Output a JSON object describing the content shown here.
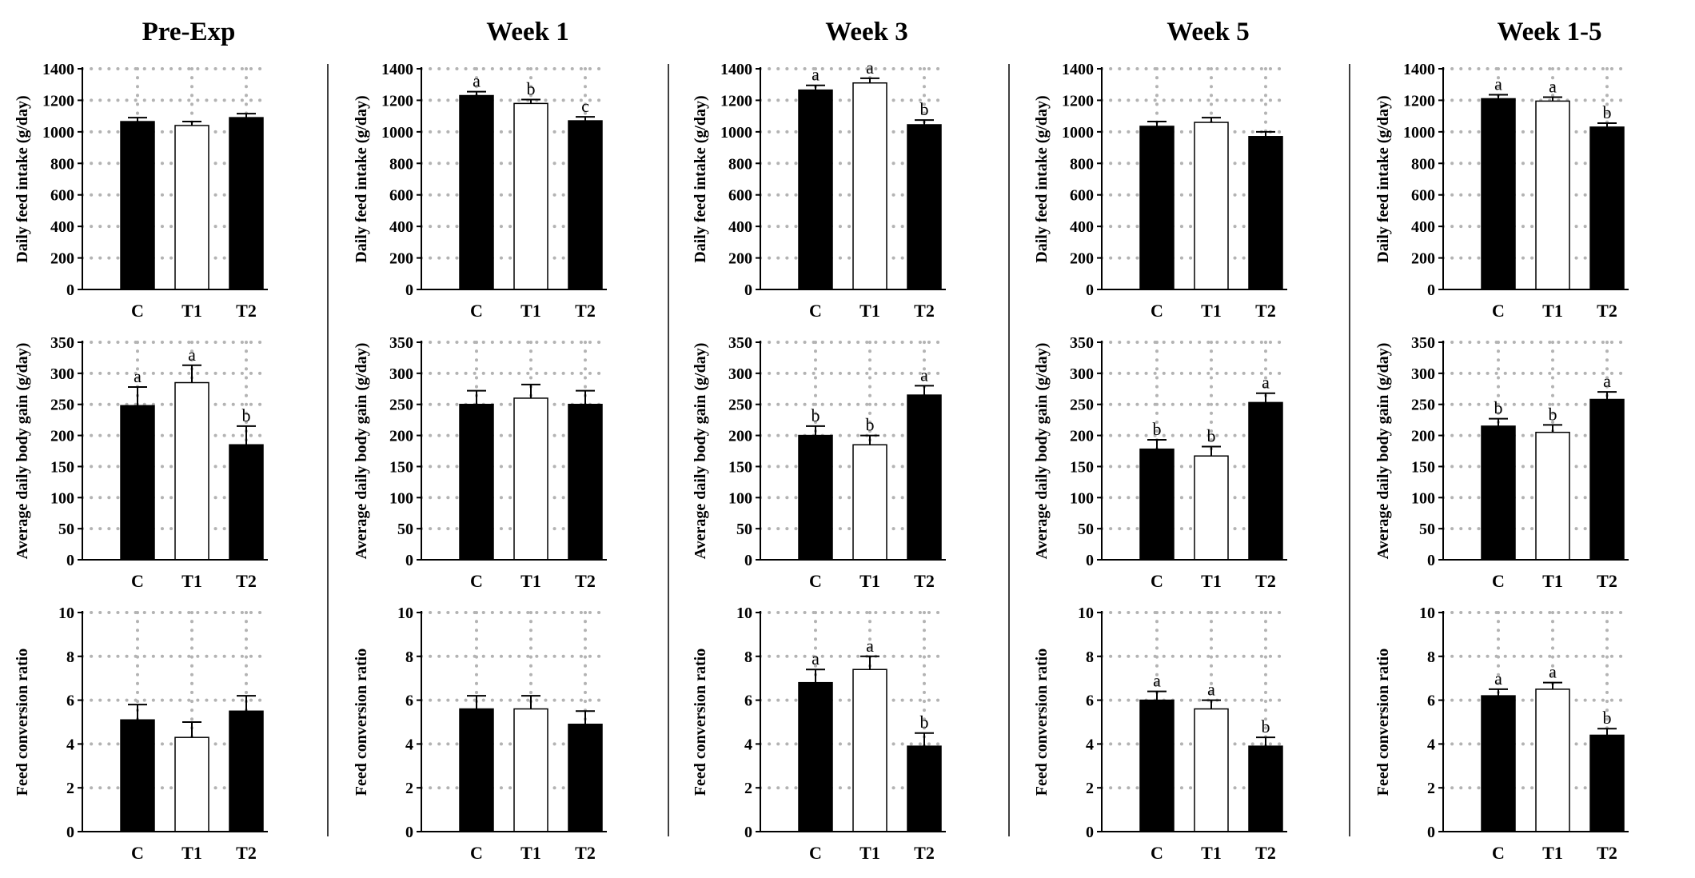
{
  "figure": {
    "columns": [
      "Pre-Exp",
      "Week 1",
      "Week 3",
      "Week 5",
      "Week 1-5"
    ],
    "colors": {
      "filled": "#000000",
      "open": "#ffffff",
      "grid": "#b3b3b3"
    }
  },
  "chart_data": [
    {
      "type": "bar",
      "column": "Pre-Exp",
      "ylabel": "Daily feed intake (g/day)",
      "categories": [
        "C",
        "T1",
        "T2"
      ],
      "values": [
        1065,
        1040,
        1090
      ],
      "errors": [
        25,
        25,
        25
      ],
      "letters": [
        "",
        "",
        ""
      ],
      "ylim": [
        0,
        1400
      ],
      "yticks": [
        0,
        200,
        400,
        600,
        800,
        1000,
        1200,
        1400
      ],
      "bar_fill": [
        "filled",
        "open",
        "filled"
      ],
      "grid": true
    },
    {
      "type": "bar",
      "column": "Week 1",
      "ylabel": "Daily feed intake (g/day)",
      "categories": [
        "C",
        "T1",
        "T2"
      ],
      "values": [
        1230,
        1180,
        1070
      ],
      "errors": [
        25,
        25,
        25
      ],
      "letters": [
        "a",
        "b",
        "c"
      ],
      "ylim": [
        0,
        1400
      ],
      "yticks": [
        0,
        200,
        400,
        600,
        800,
        1000,
        1200,
        1400
      ],
      "bar_fill": [
        "filled",
        "open",
        "filled"
      ],
      "grid": true
    },
    {
      "type": "bar",
      "column": "Week 3",
      "ylabel": "Daily feed intake (g/day)",
      "categories": [
        "C",
        "T1",
        "T2"
      ],
      "values": [
        1265,
        1310,
        1045
      ],
      "errors": [
        30,
        30,
        30
      ],
      "letters": [
        "a",
        "a",
        "b"
      ],
      "ylim": [
        0,
        1400
      ],
      "yticks": [
        0,
        200,
        400,
        600,
        800,
        1000,
        1200,
        1400
      ],
      "bar_fill": [
        "filled",
        "open",
        "filled"
      ],
      "grid": true
    },
    {
      "type": "bar",
      "column": "Week 5",
      "ylabel": "Daily feed intake (g/day)",
      "categories": [
        "C",
        "T1",
        "T2"
      ],
      "values": [
        1035,
        1060,
        970
      ],
      "errors": [
        30,
        30,
        30
      ],
      "letters": [
        "",
        "",
        ""
      ],
      "ylim": [
        0,
        1400
      ],
      "yticks": [
        0,
        200,
        400,
        600,
        800,
        1000,
        1200,
        1400
      ],
      "bar_fill": [
        "filled",
        "open",
        "filled"
      ],
      "grid": true
    },
    {
      "type": "bar",
      "column": "Week 1-5",
      "ylabel": "Daily feed intake (g/day)",
      "categories": [
        "C",
        "T1",
        "T2"
      ],
      "values": [
        1210,
        1195,
        1030
      ],
      "errors": [
        25,
        25,
        25
      ],
      "letters": [
        "a",
        "a",
        "b"
      ],
      "ylim": [
        0,
        1400
      ],
      "yticks": [
        0,
        200,
        400,
        600,
        800,
        1000,
        1200,
        1400
      ],
      "bar_fill": [
        "filled",
        "open",
        "filled"
      ],
      "grid": true
    },
    {
      "type": "bar",
      "column": "Pre-Exp",
      "ylabel": "Average daily body gain (g/day)",
      "categories": [
        "C",
        "T1",
        "T2"
      ],
      "values": [
        248,
        285,
        185
      ],
      "errors": [
        30,
        28,
        30
      ],
      "letters": [
        "a",
        "a",
        "b"
      ],
      "ylim": [
        0,
        350
      ],
      "yticks": [
        0,
        50,
        100,
        150,
        200,
        250,
        300,
        350
      ],
      "bar_fill": [
        "filled",
        "open",
        "filled"
      ],
      "grid": true
    },
    {
      "type": "bar",
      "column": "Week 1",
      "ylabel": "Average daily body gain (g/day)",
      "categories": [
        "C",
        "T1",
        "T2"
      ],
      "values": [
        250,
        260,
        250
      ],
      "errors": [
        22,
        22,
        22
      ],
      "letters": [
        "",
        "",
        ""
      ],
      "ylim": [
        0,
        350
      ],
      "yticks": [
        0,
        50,
        100,
        150,
        200,
        250,
        300,
        350
      ],
      "bar_fill": [
        "filled",
        "open",
        "filled"
      ],
      "grid": true
    },
    {
      "type": "bar",
      "column": "Week 3",
      "ylabel": "Average daily body gain (g/day)",
      "categories": [
        "C",
        "T1",
        "T2"
      ],
      "values": [
        200,
        185,
        265
      ],
      "errors": [
        15,
        15,
        15
      ],
      "letters": [
        "b",
        "b",
        "a"
      ],
      "ylim": [
        0,
        350
      ],
      "yticks": [
        0,
        50,
        100,
        150,
        200,
        250,
        300,
        350
      ],
      "bar_fill": [
        "filled",
        "open",
        "filled"
      ],
      "grid": true
    },
    {
      "type": "bar",
      "column": "Week 5",
      "ylabel": "Average daily body gain (g/day)",
      "categories": [
        "C",
        "T1",
        "T2"
      ],
      "values": [
        178,
        167,
        253
      ],
      "errors": [
        15,
        15,
        15
      ],
      "letters": [
        "b",
        "b",
        "a"
      ],
      "ylim": [
        0,
        350
      ],
      "yticks": [
        0,
        50,
        100,
        150,
        200,
        250,
        300,
        350
      ],
      "bar_fill": [
        "filled",
        "open",
        "filled"
      ],
      "grid": true
    },
    {
      "type": "bar",
      "column": "Week 1-5",
      "ylabel": "Average daily body gain (g/day)",
      "categories": [
        "C",
        "T1",
        "T2"
      ],
      "values": [
        215,
        205,
        258
      ],
      "errors": [
        12,
        12,
        12
      ],
      "letters": [
        "b",
        "b",
        "a"
      ],
      "ylim": [
        0,
        350
      ],
      "yticks": [
        0,
        50,
        100,
        150,
        200,
        250,
        300,
        350
      ],
      "bar_fill": [
        "filled",
        "open",
        "filled"
      ],
      "grid": true
    },
    {
      "type": "bar",
      "column": "Pre-Exp",
      "ylabel": "Feed conversion ratio",
      "categories": [
        "C",
        "T1",
        "T2"
      ],
      "values": [
        5.1,
        4.3,
        5.5
      ],
      "errors": [
        0.7,
        0.7,
        0.7
      ],
      "letters": [
        "",
        "",
        ""
      ],
      "ylim": [
        0,
        10
      ],
      "yticks": [
        0,
        2,
        4,
        6,
        8,
        10
      ],
      "bar_fill": [
        "filled",
        "open",
        "filled"
      ],
      "grid": true
    },
    {
      "type": "bar",
      "column": "Week 1",
      "ylabel": "Feed conversion ratio",
      "categories": [
        "C",
        "T1",
        "T2"
      ],
      "values": [
        5.6,
        5.6,
        4.9
      ],
      "errors": [
        0.6,
        0.6,
        0.6
      ],
      "letters": [
        "",
        "",
        ""
      ],
      "ylim": [
        0,
        10
      ],
      "yticks": [
        0,
        2,
        4,
        6,
        8,
        10
      ],
      "bar_fill": [
        "filled",
        "open",
        "filled"
      ],
      "grid": true
    },
    {
      "type": "bar",
      "column": "Week 3",
      "ylabel": "Feed conversion ratio",
      "categories": [
        "C",
        "T1",
        "T2"
      ],
      "values": [
        6.8,
        7.4,
        3.9
      ],
      "errors": [
        0.6,
        0.6,
        0.6
      ],
      "letters": [
        "a",
        "a",
        "b"
      ],
      "ylim": [
        0,
        10
      ],
      "yticks": [
        0,
        2,
        4,
        6,
        8,
        10
      ],
      "bar_fill": [
        "filled",
        "open",
        "filled"
      ],
      "grid": true
    },
    {
      "type": "bar",
      "column": "Week 5",
      "ylabel": "Feed conversion ratio",
      "categories": [
        "C",
        "T1",
        "T2"
      ],
      "values": [
        6.0,
        5.6,
        3.9
      ],
      "errors": [
        0.4,
        0.4,
        0.4
      ],
      "letters": [
        "a",
        "a",
        "b"
      ],
      "ylim": [
        0,
        10
      ],
      "yticks": [
        0,
        2,
        4,
        6,
        8,
        10
      ],
      "bar_fill": [
        "filled",
        "open",
        "filled"
      ],
      "grid": true
    },
    {
      "type": "bar",
      "column": "Week 1-5",
      "ylabel": "Feed conversion ratio",
      "categories": [
        "C",
        "T1",
        "T2"
      ],
      "values": [
        6.2,
        6.5,
        4.4
      ],
      "errors": [
        0.3,
        0.3,
        0.3
      ],
      "letters": [
        "a",
        "a",
        "b"
      ],
      "ylim": [
        0,
        10
      ],
      "yticks": [
        0,
        2,
        4,
        6,
        8,
        10
      ],
      "bar_fill": [
        "filled",
        "open",
        "filled"
      ],
      "grid": true
    }
  ]
}
